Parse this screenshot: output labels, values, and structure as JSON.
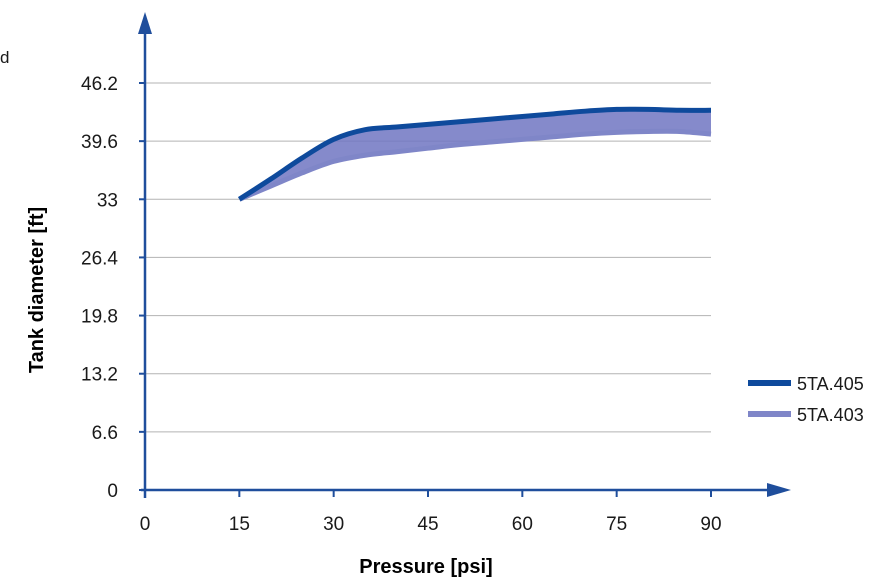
{
  "edge_text": "d",
  "colors": {
    "axis": "#1f4e9c",
    "grid": "#b3b3b3",
    "series_405": "#0e4a9c",
    "series_403": "#7f86c8",
    "band_fill": "#7076c2"
  },
  "chart_data": {
    "type": "line",
    "xlabel": "Pressure [psi]",
    "ylabel": "Tank diameter [ft]",
    "xlim": [
      0,
      90
    ],
    "ylim": [
      0,
      46.2
    ],
    "x_ticks": [
      "0",
      "15",
      "30",
      "45",
      "60",
      "75",
      "90"
    ],
    "y_ticks": [
      "0",
      "6.6",
      "13.2",
      "19.8",
      "26.4",
      "33",
      "39.6",
      "46.2"
    ],
    "grid": "horizontal",
    "legend_position": "right",
    "series": [
      {
        "name": "5TA.405",
        "x": [
          15,
          20,
          25,
          30,
          35,
          40,
          45,
          50,
          55,
          60,
          65,
          70,
          75,
          80,
          85,
          90
        ],
        "y": [
          33.0,
          35.3,
          37.7,
          39.8,
          40.9,
          41.2,
          41.5,
          41.8,
          42.1,
          42.4,
          42.7,
          43.0,
          43.2,
          43.2,
          43.1,
          43.1
        ]
      },
      {
        "name": "5TA.403",
        "x": [
          15,
          20,
          25,
          30,
          35,
          40,
          45,
          50,
          55,
          60,
          65,
          70,
          75,
          80,
          85,
          90
        ],
        "y": [
          33.0,
          34.5,
          36.0,
          37.3,
          38.0,
          38.4,
          38.8,
          39.2,
          39.5,
          39.8,
          40.1,
          40.4,
          40.6,
          40.7,
          40.7,
          40.4
        ]
      }
    ]
  }
}
